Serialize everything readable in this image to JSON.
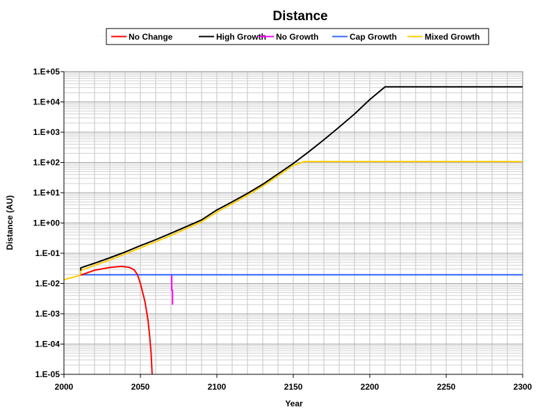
{
  "chart_data": {
    "type": "line",
    "title": "Distance",
    "xlabel": "Year",
    "ylabel": "Distance (AU)",
    "xlim": [
      2000,
      2300
    ],
    "ylim": [
      1e-05,
      100000.0
    ],
    "yscale": "log",
    "x_ticks": [
      "2000",
      "2050",
      "2100",
      "2150",
      "2200",
      "2250",
      "2300"
    ],
    "y_ticks": [
      "1.E-05",
      "1.E-04",
      "1.E-03",
      "1.E-02",
      "1.E-01",
      "1.E+00",
      "1.E+01",
      "1.E+02",
      "1.E+03",
      "1.E+04",
      "1.E+05"
    ],
    "grid": true,
    "legend_position": "top",
    "series": [
      {
        "name": "No Change",
        "color": "#ff0000",
        "x": [
          2011,
          2020,
          2030,
          2038,
          2043,
          2046,
          2048,
          2050,
          2052,
          2053,
          2055,
          2056,
          2057,
          2057.7
        ],
        "values": [
          0.019,
          0.0275,
          0.034,
          0.037,
          0.034,
          0.028,
          0.02,
          0.01,
          0.004,
          0.0025,
          0.0006,
          0.0002,
          5e-05,
          1e-05
        ]
      },
      {
        "name": "High Growth",
        "color": "#000000",
        "x": [
          2011,
          2011,
          2020,
          2030,
          2040,
          2050,
          2060,
          2070,
          2080,
          2090,
          2100,
          2110,
          2120,
          2130,
          2140,
          2150,
          2160,
          2170,
          2180,
          2190,
          2200,
          2210,
          2300
        ],
        "values": [
          0.027,
          0.033,
          0.047,
          0.071,
          0.11,
          0.178,
          0.28,
          0.46,
          0.76,
          1.26,
          2.7,
          5,
          9.5,
          19,
          42,
          93,
          224,
          562,
          1480,
          3980,
          12000,
          31600,
          31600
        ]
      },
      {
        "name": "No Growth",
        "color": "#ff00ff",
        "x": [
          2070.5,
          2070.5,
          2071,
          2071
        ],
        "values": [
          0.019,
          0.006,
          0.006,
          0.002
        ]
      },
      {
        "name": "Cap Growth",
        "color": "#3366ff",
        "x": [
          2011,
          2300
        ],
        "values": [
          0.0195,
          0.0195
        ]
      },
      {
        "name": "Mixed Growth",
        "color": "#ffcc00",
        "x": [
          2000,
          2011,
          2011,
          2020,
          2030,
          2040,
          2050,
          2060,
          2070,
          2080,
          2090,
          2100,
          2110,
          2120,
          2130,
          2140,
          2150,
          2157,
          2300
        ],
        "values": [
          0.0134,
          0.019,
          0.027,
          0.04,
          0.06,
          0.095,
          0.15,
          0.24,
          0.39,
          0.65,
          1.1,
          2.3,
          4.3,
          8.2,
          16.5,
          36,
          80,
          107,
          107
        ]
      }
    ]
  }
}
